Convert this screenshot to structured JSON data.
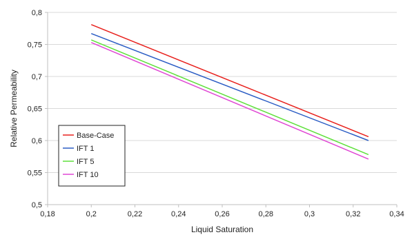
{
  "chart_data": {
    "type": "line",
    "title": "",
    "xlabel": "Liquid Saturation",
    "ylabel": "Relative Permeability",
    "xlim": [
      0.18,
      0.34
    ],
    "ylim": [
      0.5,
      0.8
    ],
    "x_ticks": [
      0.18,
      0.2,
      0.22,
      0.24,
      0.26,
      0.28,
      0.3,
      0.32,
      0.34
    ],
    "y_ticks": [
      0.5,
      0.55,
      0.6,
      0.65,
      0.7,
      0.75,
      0.8
    ],
    "x_tick_labels": [
      "0,18",
      "0,2",
      "0,22",
      "0,24",
      "0,26",
      "0,28",
      "0,3",
      "0,32",
      "0,34"
    ],
    "y_tick_labels": [
      "0,5",
      "0,55",
      "0,6",
      "0,65",
      "0,7",
      "0,75",
      "0,8"
    ],
    "grid": "horizontal",
    "legend_position": "bottom-left",
    "series": [
      {
        "name": "Base-Case",
        "color": "#e8201c",
        "x": [
          0.2,
          0.327
        ],
        "y": [
          0.781,
          0.606
        ]
      },
      {
        "name": "IFT 1",
        "color": "#2a5cc4",
        "x": [
          0.2,
          0.327
        ],
        "y": [
          0.767,
          0.6
        ]
      },
      {
        "name": "IFT 5",
        "color": "#5ee03a",
        "x": [
          0.2,
          0.327
        ],
        "y": [
          0.757,
          0.578
        ]
      },
      {
        "name": "IFT 10",
        "color": "#e046d4",
        "x": [
          0.2,
          0.327
        ],
        "y": [
          0.753,
          0.571
        ]
      }
    ]
  }
}
